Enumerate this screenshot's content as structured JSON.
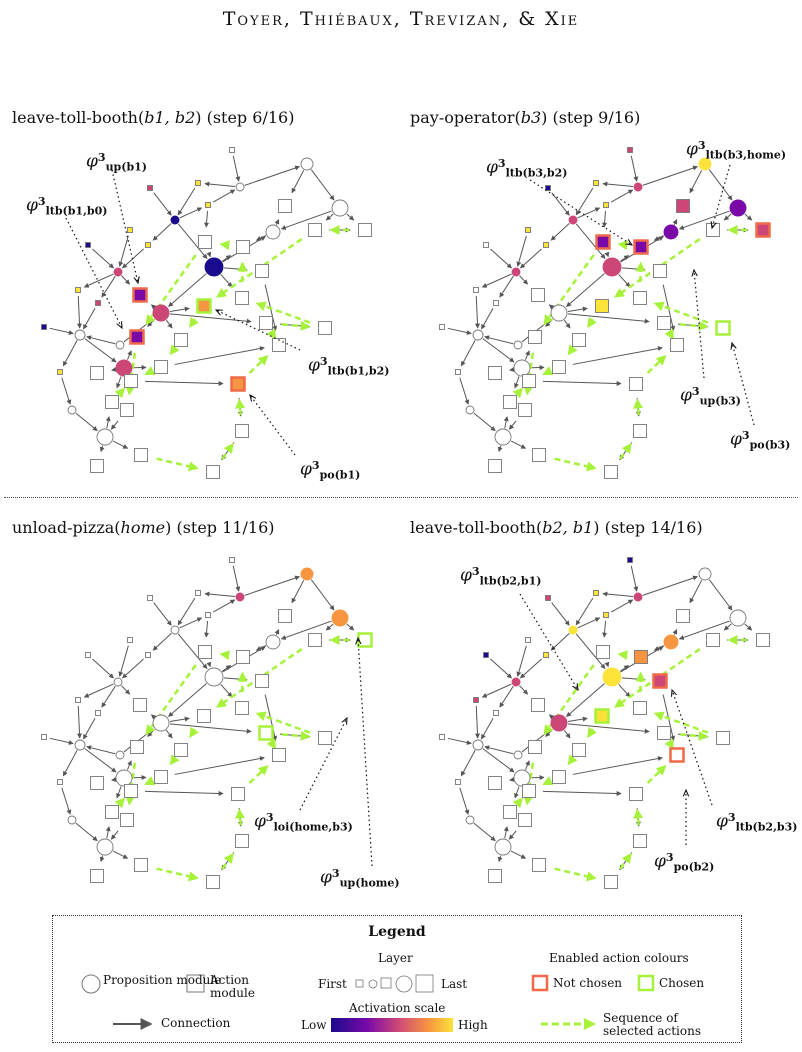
{
  "header": "Toyer, Thiébaux, Trevizan, & Xie",
  "colors": {
    "chosen": "#a6f23a",
    "not_chosen": "#f06a4a",
    "edge": "#555555",
    "activation_low": "#1a0a8c",
    "activation_high": "#fbe33a"
  },
  "panels": [
    {
      "action": "leave-toll-booth(",
      "args": "b1, b2",
      "step": "(step 6/16)",
      "annotations": [
        {
          "sub": "up(b1)"
        },
        {
          "sub": "ltb(b1,b0)"
        },
        {
          "sub": "ltb(b1,b2)"
        },
        {
          "sub": "po(b1)"
        }
      ]
    },
    {
      "action": "pay-operator(",
      "args": "b3",
      "step": "(step 9/16)",
      "annotations": [
        {
          "sub": "ltb(b3,b2)"
        },
        {
          "sub": "ltb(b3,home)"
        },
        {
          "sub": "up(b3)"
        },
        {
          "sub": "po(b3)"
        }
      ]
    },
    {
      "action": "unload-pizza(",
      "args": "home",
      "step": "(step 11/16)",
      "annotations": [
        {
          "sub": "loi(home,b3)"
        },
        {
          "sub": "up(home)"
        }
      ]
    },
    {
      "action": "leave-toll-booth(",
      "args": "b2, b1",
      "step": "(step 14/16)",
      "annotations": [
        {
          "sub": "ltb(b2,b1)"
        },
        {
          "sub": "ltb(b2,b3)"
        },
        {
          "sub": "po(b2)"
        }
      ]
    }
  ],
  "phi_symbol": "φ",
  "phi_superscript": "3",
  "legend": {
    "title": "Legend",
    "proposition_module": "Proposition module",
    "action_module": "Action module",
    "connection": "Connection",
    "layer": "Layer",
    "first": "First",
    "last": "Last",
    "activation_scale": "Activation scale",
    "low": "Low",
    "high": "High",
    "enabled_action_colours": "Enabled action colours",
    "not_chosen": "Not chosen",
    "chosen": "Chosen",
    "sequence_of_selected_actions": "Sequence of selected actions"
  }
}
